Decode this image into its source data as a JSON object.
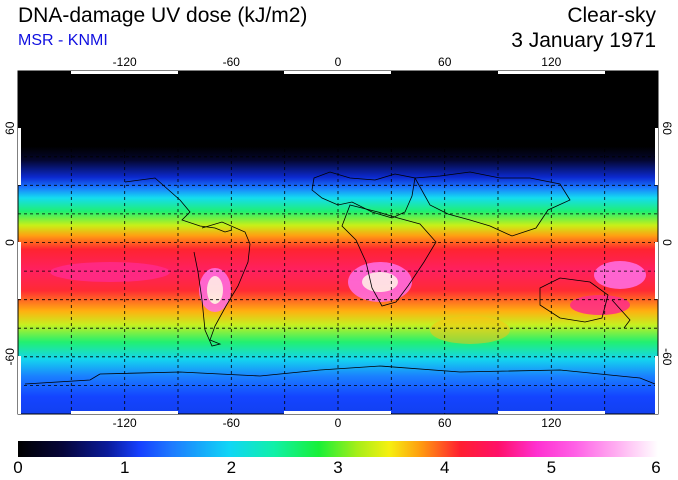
{
  "header": {
    "title": "DNA-damage UV dose (kJ/m2)",
    "subtitle": "MSR - KNMI",
    "condition": "Clear-sky",
    "date": "3 January 1971"
  },
  "map": {
    "projection": "equirectangular",
    "lon_range": [
      -180,
      180
    ],
    "lat_range": [
      -90,
      90
    ],
    "lon_ticks": [
      "-120",
      "-60",
      "0",
      "60",
      "120"
    ],
    "lat_ticks": [
      "60",
      "0",
      "-60"
    ],
    "grid": "dashed every 30 degrees",
    "colors": {
      "polar_night": "#000000",
      "low": "#1640ff",
      "mid": "#18f038",
      "high": "#ff2030",
      "peak": "#ff30d0",
      "max": "#ffffff"
    }
  },
  "colorbar": {
    "min": 0,
    "max": 6,
    "labels": [
      "0",
      "1",
      "2",
      "3",
      "4",
      "5",
      "6"
    ]
  }
}
